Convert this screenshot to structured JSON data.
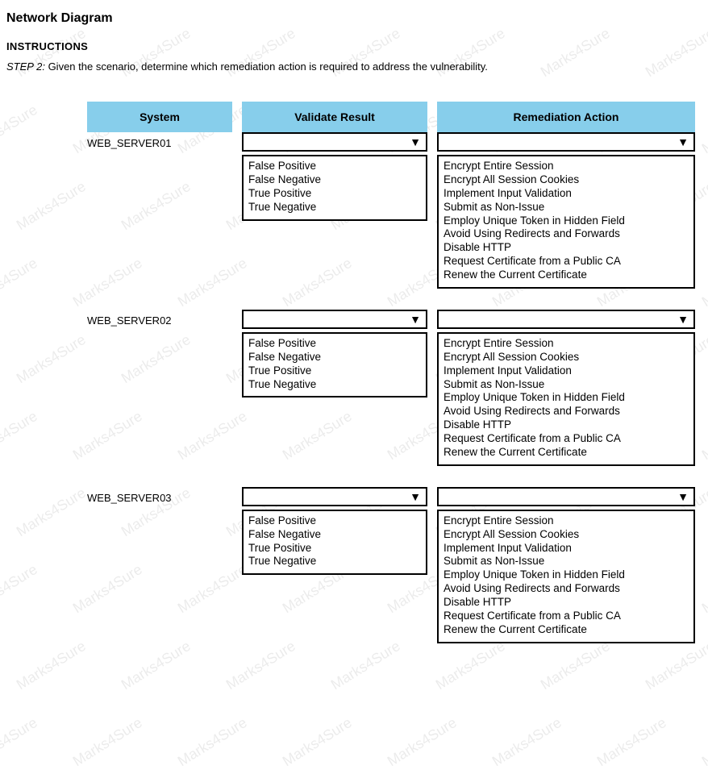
{
  "watermark_text": "Marks4Sure",
  "title": "Network Diagram",
  "instructions_heading": "INSTRUCTIONS",
  "step_label": "STEP 2:",
  "step_text": "Given the scenario, determine which remediation action is required to address the vulnerability.",
  "headers": {
    "system": "System",
    "validate": "Validate Result",
    "remediation": "Remediation Action"
  },
  "validate_options": [
    "False Positive",
    "False Negative",
    "True Positive",
    "True Negative"
  ],
  "remediation_options": [
    "Encrypt Entire Session",
    "Encrypt All Session Cookies",
    "Implement Input Validation",
    "Submit as Non-Issue",
    "Employ Unique Token in Hidden Field",
    "Avoid Using Redirects and Forwards",
    "Disable HTTP",
    "Request Certificate from a Public CA",
    "Renew the Current Certificate"
  ],
  "rows": [
    {
      "system": "WEB_SERVER01"
    },
    {
      "system": "WEB_SERVER02"
    },
    {
      "system": "WEB_SERVER03"
    }
  ],
  "colors": {
    "header_bg": "#87ceeb",
    "border": "#000000",
    "watermark": "rgba(0,0,0,0.08)"
  }
}
